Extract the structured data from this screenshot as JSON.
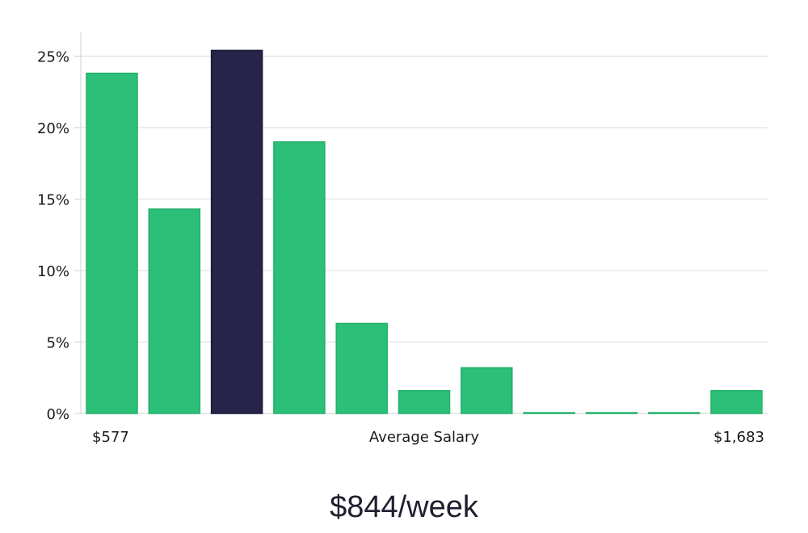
{
  "chart_data": {
    "type": "bar",
    "xlabel": "Average Salary",
    "x_range_labels": {
      "min": "$577",
      "max": "$1,683"
    },
    "values": [
      23.8,
      14.3,
      25.4,
      19.0,
      6.3,
      1.6,
      3.2,
      0.0,
      0.0,
      0.0,
      1.6
    ],
    "highlight_index": 2,
    "ylim": [
      0,
      26.5
    ],
    "yticks": [
      0,
      5,
      10,
      15,
      20,
      25
    ],
    "ytick_labels": [
      "0%",
      "5%",
      "10%",
      "15%",
      "20%",
      "25%"
    ],
    "grid": true,
    "colors": {
      "bar": "#2bbf78",
      "bar_edge": "#22b06c",
      "highlight": "#27244a",
      "grid": "#dddddd",
      "axis": "#cfcfcf"
    }
  },
  "summary": "$844/week"
}
